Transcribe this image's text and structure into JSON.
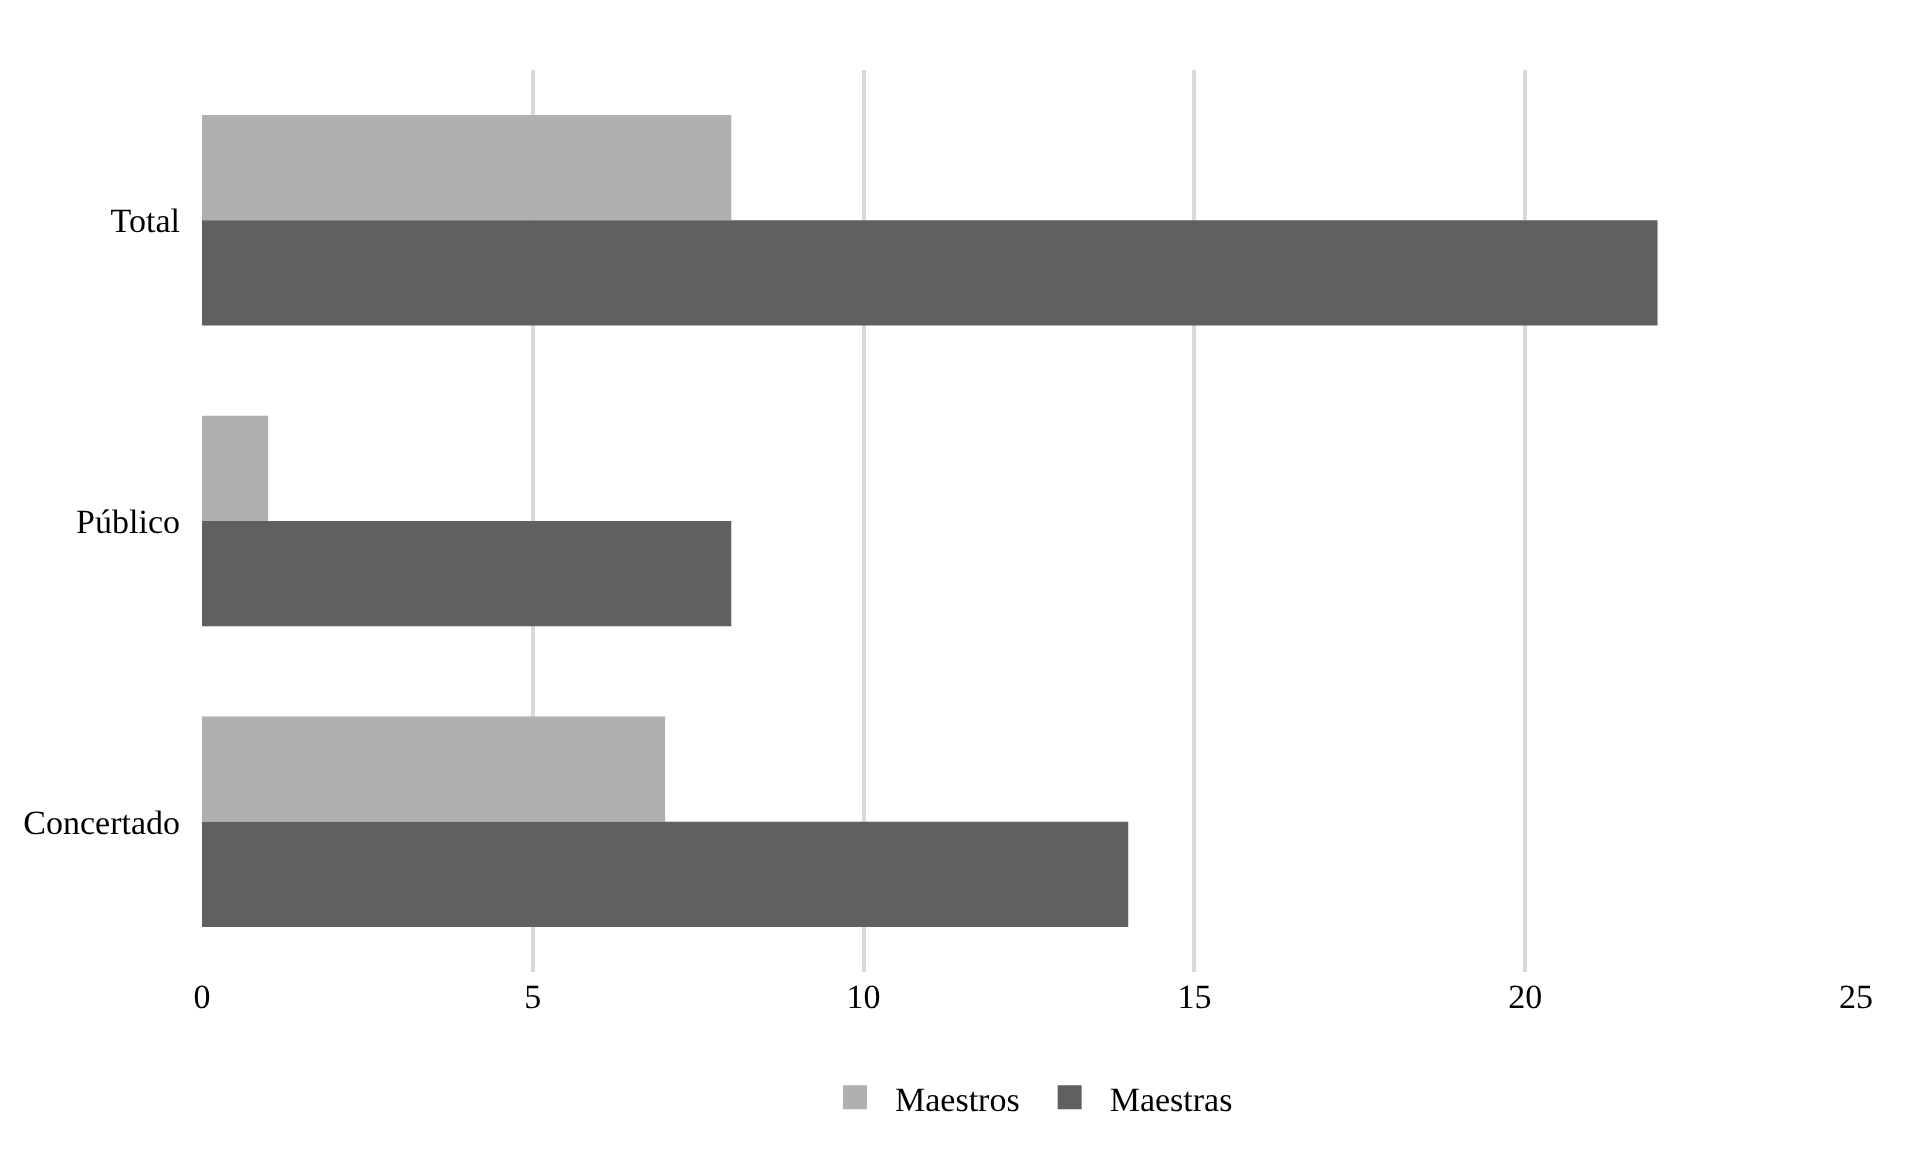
{
  "chart_data": {
    "type": "bar",
    "orientation": "horizontal",
    "categories": [
      "Total",
      "Público",
      "Concertado"
    ],
    "series": [
      {
        "name": "Maestros",
        "color": "#b0b0b0",
        "values": [
          8,
          1,
          7
        ]
      },
      {
        "name": "Maestras",
        "color": "#606060",
        "values": [
          22,
          8,
          14
        ]
      }
    ],
    "xlim": [
      0,
      25
    ],
    "xticks": [
      0,
      5,
      10,
      15,
      20,
      25
    ],
    "grid": "x",
    "legend": "bottom"
  }
}
